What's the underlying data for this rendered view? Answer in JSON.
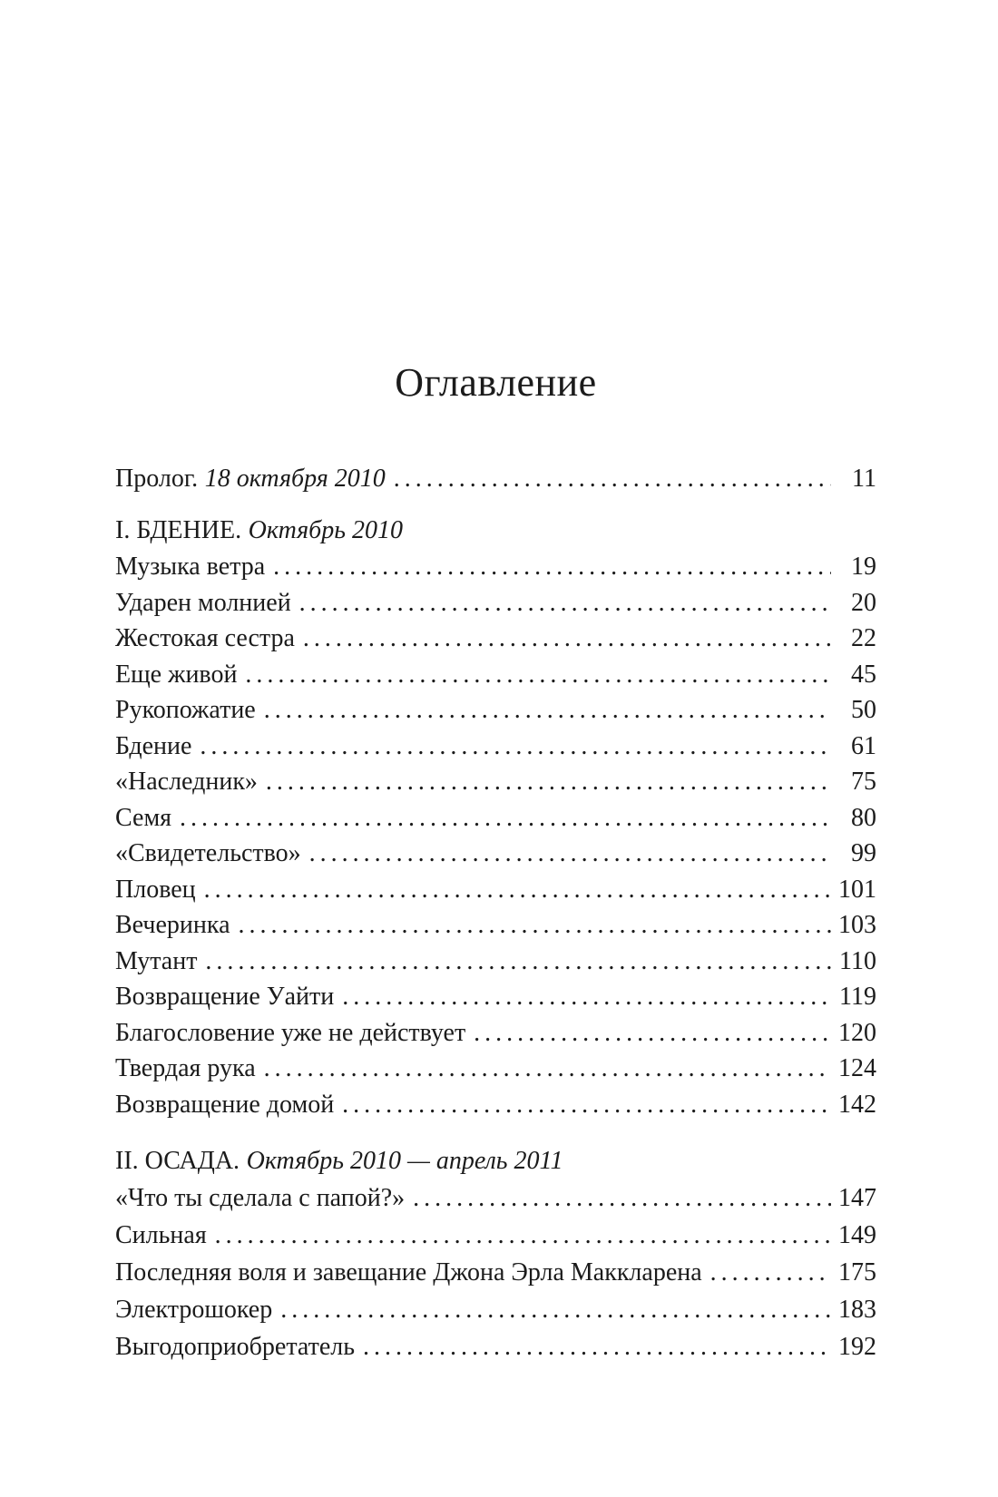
{
  "toc": {
    "title": "Оглавление",
    "prologue": {
      "label": "Пролог.",
      "date": "18 октября 2010",
      "page": "11"
    },
    "sections": [
      {
        "number_title": "I. БДЕНИЕ.",
        "subtitle": "Октябрь 2010",
        "entries": [
          {
            "title": "Музыка ветра",
            "page": "19"
          },
          {
            "title": "Ударен молнией",
            "page": "20"
          },
          {
            "title": "Жестокая сестра",
            "page": "22"
          },
          {
            "title": "Еще живой",
            "page": "45"
          },
          {
            "title": "Рукопожатие",
            "page": "50"
          },
          {
            "title": "Бдение",
            "page": "61"
          },
          {
            "title": "«Наследник»",
            "page": "75"
          },
          {
            "title": "Семя",
            "page": "80"
          },
          {
            "title": "«Свидетельство»",
            "page": "99"
          },
          {
            "title": "Пловец",
            "page": "101"
          },
          {
            "title": "Вечеринка",
            "page": "103"
          },
          {
            "title": "Мутант",
            "page": "110"
          },
          {
            "title": "Возвращение Уайти",
            "page": "119"
          },
          {
            "title": "Благословение уже не действует",
            "page": "120"
          },
          {
            "title": "Твердая рука",
            "page": "124"
          },
          {
            "title": "Возвращение домой",
            "page": "142"
          }
        ]
      },
      {
        "number_title": "II. ОСАДА.",
        "subtitle": "Октябрь 2010 — апрель 2011",
        "entries": [
          {
            "title": "«Что ты сделала с папой?»",
            "page": "147"
          },
          {
            "title": "Сильная",
            "page": "149"
          },
          {
            "title": "Последняя воля и завещание Джона Эрла Маккларена",
            "page": "175"
          },
          {
            "title": "Электрошокер",
            "page": "183"
          },
          {
            "title": "Выгодоприобретатель",
            "page": "192"
          }
        ]
      }
    ]
  }
}
